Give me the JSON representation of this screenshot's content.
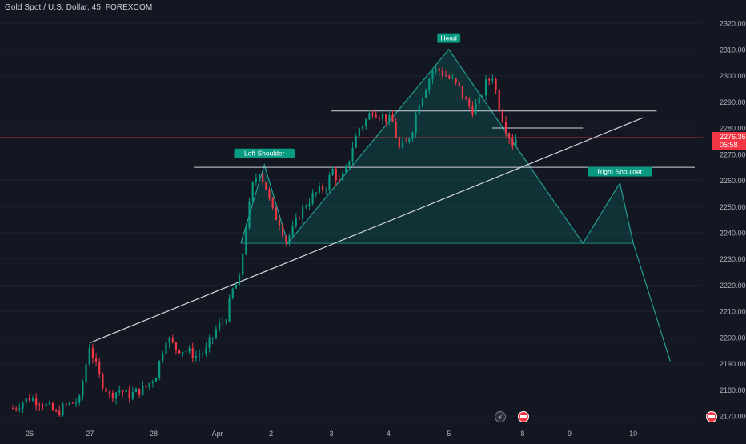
{
  "header": {
    "symbol_title": "Gold Spot / U.S. Dollar, 45, FOREXCOM"
  },
  "colors": {
    "background": "#131722",
    "up_candle": "#089981",
    "down_candle": "#f23645",
    "pattern_fill": "#0b7a6a",
    "pattern_line": "#26a69a",
    "label_bg": "#089981",
    "line_white": "#d1d4dc",
    "price_line": "#f23645",
    "axis_text": "#b2b5be"
  },
  "price_axis": {
    "ticks": [
      "2320.00",
      "2310.00",
      "2300.00",
      "2290.00",
      "2280.00",
      "2270.00",
      "2260.00",
      "2250.00",
      "2240.00",
      "2230.00",
      "2220.00",
      "2210.00",
      "2200.00",
      "2190.00",
      "2180.00",
      "2170.00"
    ],
    "current_price": "2276.36",
    "countdown": "05:58"
  },
  "time_axis": {
    "ticks": [
      "26",
      "27",
      "28",
      "Apr",
      "2",
      "3",
      "4",
      "5",
      "8",
      "9",
      "10"
    ]
  },
  "annotations": {
    "left_shoulder": "Left Shoulder",
    "head": "Head",
    "right_shoulder": "Right Shoulder"
  },
  "chart_data": {
    "type": "candlestick",
    "symbol": "Gold Spot / U.S. Dollar",
    "interval": "45",
    "exchange": "FOREXCOM",
    "ylim": [
      2167,
      2324
    ],
    "ohlc_close_path": [
      [
        0,
        2173
      ],
      [
        5,
        2177
      ],
      [
        9,
        2175
      ],
      [
        13,
        2171
      ],
      [
        16,
        2174
      ],
      [
        20,
        2176
      ],
      [
        23,
        2197
      ],
      [
        26,
        2185
      ],
      [
        29,
        2178
      ],
      [
        32,
        2180
      ],
      [
        35,
        2178
      ],
      [
        40,
        2181
      ],
      [
        43,
        2186
      ],
      [
        46,
        2200
      ],
      [
        49,
        2196
      ],
      [
        52,
        2195
      ],
      [
        55,
        2193
      ],
      [
        58,
        2195
      ],
      [
        61,
        2203
      ],
      [
        64,
        2208
      ],
      [
        66,
        2218
      ],
      [
        68,
        2222
      ],
      [
        70,
        2243
      ],
      [
        72,
        2258
      ],
      [
        74,
        2264
      ],
      [
        76,
        2257
      ],
      [
        78,
        2248
      ],
      [
        80,
        2244
      ],
      [
        82,
        2237
      ],
      [
        84,
        2241
      ],
      [
        86,
        2247
      ],
      [
        88,
        2251
      ],
      [
        90,
        2254
      ],
      [
        92,
        2256
      ],
      [
        94,
        2258
      ],
      [
        96,
        2264
      ],
      [
        98,
        2259
      ],
      [
        100,
        2264
      ],
      [
        102,
        2273
      ],
      [
        104,
        2280
      ],
      [
        106,
        2283
      ],
      [
        108,
        2287
      ],
      [
        110,
        2285
      ],
      [
        112,
        2284
      ],
      [
        114,
        2282
      ],
      [
        116,
        2272
      ],
      [
        118,
        2274
      ],
      [
        120,
        2280
      ],
      [
        122,
        2290
      ],
      [
        124,
        2296
      ],
      [
        126,
        2302
      ],
      [
        128,
        2302
      ],
      [
        130,
        2300
      ],
      [
        132,
        2298
      ],
      [
        134,
        2295
      ],
      [
        136,
        2290
      ],
      [
        138,
        2287
      ],
      [
        140,
        2290
      ],
      [
        142,
        2297
      ],
      [
        144,
        2300
      ],
      [
        146,
        2288
      ],
      [
        148,
        2280
      ],
      [
        150,
        2274
      ],
      [
        151,
        2276
      ]
    ],
    "levels": [
      {
        "price": 2286.5
      },
      {
        "price": 2280.0
      },
      {
        "price": 2265.0
      },
      {
        "price": 2276.36
      }
    ],
    "pattern": {
      "points": [
        {
          "t": 68,
          "price": 2236
        },
        {
          "t": 75,
          "price": 2266
        },
        {
          "t": 82,
          "price": 2236
        },
        {
          "t": 130,
          "price": 2310
        },
        {
          "t": 170,
          "price": 2236
        },
        {
          "t": 181,
          "price": 2259
        },
        {
          "t": 185,
          "price": 2236
        }
      ],
      "projection": [
        {
          "t": 185,
          "price": 2236
        },
        {
          "t": 196,
          "price": 2191
        }
      ]
    },
    "trendline": [
      {
        "t": 23,
        "price": 2198
      },
      {
        "t": 188,
        "price": 2284
      }
    ]
  }
}
